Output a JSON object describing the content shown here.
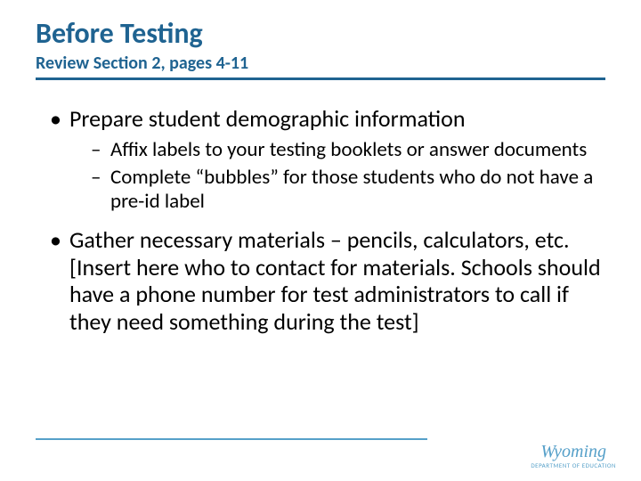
{
  "colors": {
    "title": "#1f6391",
    "underline": "#1f6391",
    "text": "#000000",
    "footer_rule": "#56a0c9",
    "logo": "#56a0c9",
    "bracket_text": "#000000",
    "background": "#ffffff"
  },
  "typography": {
    "title_fontsize": 32,
    "subtitle_fontsize": 20,
    "bullet1_fontsize": 26,
    "bullet2_fontsize": 23,
    "logo_script_fontsize": 20,
    "logo_dept_fontsize": 7
  },
  "layout": {
    "underline_width": 640,
    "underline_thickness": 3,
    "footer_rule_width": 440,
    "footer_rule_thickness": 2
  },
  "title": "Before Testing",
  "subtitle": "Review Section 2, pages 4-11",
  "bullets": {
    "b1": "Prepare student demographic information",
    "b1_subs": {
      "s1": "Affix labels to your testing booklets or answer documents",
      "s2": "Complete “bubbles” for those students who do not have a pre-id label"
    },
    "b2_prefix": "Gather necessary materials – pencils, calculators, etc. ",
    "b2_bracket": "[Insert here who to contact for materials. Schools should have a phone number for test administrators to call if they need something during the test]"
  },
  "logo": {
    "script": "Wyoming",
    "dept": "DEPARTMENT OF EDUCATION"
  }
}
